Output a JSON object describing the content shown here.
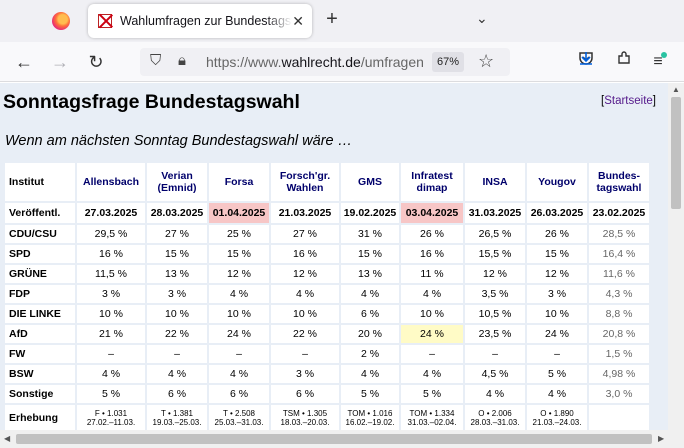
{
  "browser": {
    "tab_title": "Wahlumfragen zur Bundestagswahl",
    "url_prefix": "https://www.",
    "url_domain": "wahlrecht.de",
    "url_path": "/umfragen",
    "zoom": "67%"
  },
  "page": {
    "title": "Sonntagsfrage Bundestagswahl",
    "start_open": "[",
    "start_link": "Startseite",
    "start_close": "]",
    "subtitle": "Wenn am nächsten Sonntag Bundestagswahl wäre …"
  },
  "table": {
    "corner": "Institut",
    "institutes": [
      "Allensbach",
      "Verian (Emnid)",
      "Forsa",
      "Forsch'gr. Wahlen",
      "GMS",
      "Infratest dimap",
      "INSA",
      "Yougov",
      "Bundes-tagswahl"
    ],
    "date_label": "Veröffentl.",
    "dates": [
      "27.03.2025",
      "28.03.2025",
      "01.04.2025",
      "21.03.2025",
      "19.02.2025",
      "03.04.2025",
      "31.03.2025",
      "26.03.2025",
      "23.02.2025"
    ],
    "rows": [
      {
        "party": "CDU/CSU",
        "values": [
          "29,5 %",
          "27 %",
          "25 %",
          "27 %",
          "31 %",
          "26 %",
          "26,5 %",
          "26 %",
          "28,5 %"
        ]
      },
      {
        "party": "SPD",
        "values": [
          "16 %",
          "15 %",
          "15 %",
          "16 %",
          "15 %",
          "16 %",
          "15,5 %",
          "15 %",
          "16,4 %"
        ]
      },
      {
        "party": "GRÜNE",
        "values": [
          "11,5 %",
          "13 %",
          "12 %",
          "12 %",
          "13 %",
          "11 %",
          "12 %",
          "12 %",
          "11,6 %"
        ]
      },
      {
        "party": "FDP",
        "values": [
          "3 %",
          "3 %",
          "4 %",
          "4 %",
          "4 %",
          "4 %",
          "3,5 %",
          "3 %",
          "4,3 %"
        ]
      },
      {
        "party": "DIE LINKE",
        "values": [
          "10 %",
          "10 %",
          "10 %",
          "10 %",
          "6 %",
          "10 %",
          "10,5 %",
          "10 %",
          "8,8 %"
        ]
      },
      {
        "party": "AfD",
        "values": [
          "21 %",
          "22 %",
          "24 %",
          "22 %",
          "20 %",
          "24 %",
          "23,5 %",
          "24 %",
          "20,8 %"
        ]
      },
      {
        "party": "FW",
        "values": [
          "–",
          "–",
          "–",
          "–",
          "2 %",
          "–",
          "–",
          "–",
          "1,5 %"
        ]
      },
      {
        "party": "BSW",
        "values": [
          "4 %",
          "4 %",
          "4 %",
          "3 %",
          "4 %",
          "4 %",
          "4,5 %",
          "5 %",
          "4,98 %"
        ]
      },
      {
        "party": "Sonstige",
        "values": [
          "5 %",
          "6 %",
          "6 %",
          "6 %",
          "5 %",
          "5 %",
          "4 %",
          "4 %",
          "3,0 %"
        ]
      }
    ],
    "erhebung_label": "Erhebung",
    "erhebung": [
      {
        "n": "F • 1.031",
        "range": "27.02.–11.03."
      },
      {
        "n": "T • 1.381",
        "range": "19.03.–25.03."
      },
      {
        "n": "T • 2.508",
        "range": "25.03.–31.03."
      },
      {
        "n": "TSM • 1.305",
        "range": "18.03.–20.03."
      },
      {
        "n": "TOM • 1.016",
        "range": "16.02.–19.02."
      },
      {
        "n": "TOM • 1.334",
        "range": "31.03.–02.04."
      },
      {
        "n": "O • 2.006",
        "range": "28.03.–31.03."
      },
      {
        "n": "O • 1.890",
        "range": "21.03.–24.03."
      },
      {
        "n": "",
        "range": ""
      }
    ]
  },
  "colors": {
    "date_highlight": "#f7c6c6",
    "value_highlight": "#fffbc6",
    "institute_link": "#00006b",
    "page_bg": "#e8eef6"
  }
}
